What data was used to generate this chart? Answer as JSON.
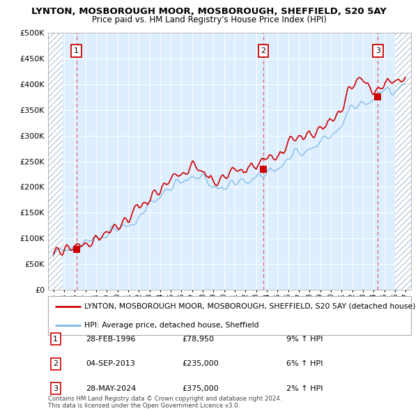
{
  "title": "LYNTON, MOSBOROUGH MOOR, MOSBOROUGH, SHEFFIELD, S20 5AY",
  "subtitle": "Price paid vs. HM Land Registry's House Price Index (HPI)",
  "ytick_values": [
    0,
    50000,
    100000,
    150000,
    200000,
    250000,
    300000,
    350000,
    400000,
    450000,
    500000
  ],
  "xlim": [
    1993.5,
    2027.5
  ],
  "ylim": [
    0,
    500000
  ],
  "sale_dates": [
    1996.163,
    2013.671,
    2024.411
  ],
  "sale_prices": [
    78950,
    235000,
    375000
  ],
  "sale_labels": [
    "1",
    "2",
    "3"
  ],
  "hpi_color": "#7ab8e8",
  "price_paid_color": "#cc0000",
  "dashed_line_color": "#e06060",
  "plot_bg_color": "#ddeeff",
  "hatch_color": "#bbccdd",
  "legend_line1": "LYNTON, MOSBOROUGH MOOR, MOSBOROUGH, SHEFFIELD, S20 5AY (detached house)",
  "legend_line2": "HPI: Average price, detached house, Sheffield",
  "table_data": [
    [
      "1",
      "28-FEB-1996",
      "£78,950",
      "9% ↑ HPI"
    ],
    [
      "2",
      "04-SEP-2013",
      "£235,000",
      "6% ↑ HPI"
    ],
    [
      "3",
      "28-MAY-2024",
      "£375,000",
      "2% ↑ HPI"
    ]
  ],
  "footnote": "Contains HM Land Registry data © Crown copyright and database right 2024.\nThis data is licensed under the Open Government Licence v3.0.",
  "xtick_years": [
    1994,
    1995,
    1996,
    1997,
    1998,
    1999,
    2000,
    2001,
    2002,
    2003,
    2004,
    2005,
    2006,
    2007,
    2008,
    2009,
    2010,
    2011,
    2012,
    2013,
    2014,
    2015,
    2016,
    2017,
    2018,
    2019,
    2020,
    2021,
    2022,
    2023,
    2024,
    2025,
    2026,
    2027
  ],
  "hatch_end": 1994.85
}
